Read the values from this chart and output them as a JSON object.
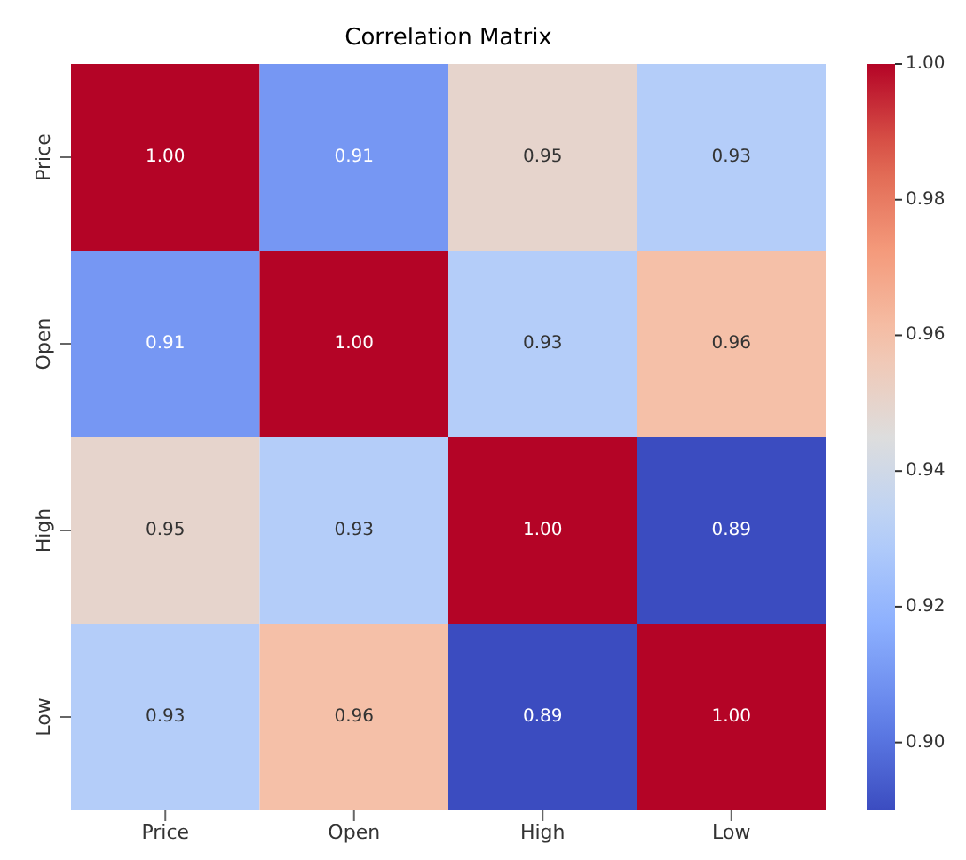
{
  "chart_data": {
    "type": "heatmap",
    "title": "Correlation Matrix",
    "categories": [
      "Price",
      "Open",
      "High",
      "Low"
    ],
    "y_categories": [
      "Price",
      "Open",
      "High",
      "Low"
    ],
    "cells": [
      [
        1.0,
        0.91,
        0.95,
        0.93
      ],
      [
        0.91,
        1.0,
        0.93,
        0.96
      ],
      [
        0.95,
        0.93,
        1.0,
        0.89
      ],
      [
        0.93,
        0.96,
        0.89,
        1.0
      ]
    ],
    "cell_labels": [
      [
        "1.00",
        "0.91",
        "0.95",
        "0.93"
      ],
      [
        "0.91",
        "1.00",
        "0.93",
        "0.96"
      ],
      [
        "0.95",
        "0.93",
        "1.00",
        "0.89"
      ],
      [
        "0.93",
        "0.96",
        "0.89",
        "1.00"
      ]
    ],
    "clim": [
      0.89,
      1.0
    ],
    "cticks": [
      {
        "value": 0.9,
        "label": "0.90"
      },
      0.92,
      0.94,
      0.96,
      0.98,
      {
        "value": 1,
        "label": "1.00"
      }
    ]
  }
}
